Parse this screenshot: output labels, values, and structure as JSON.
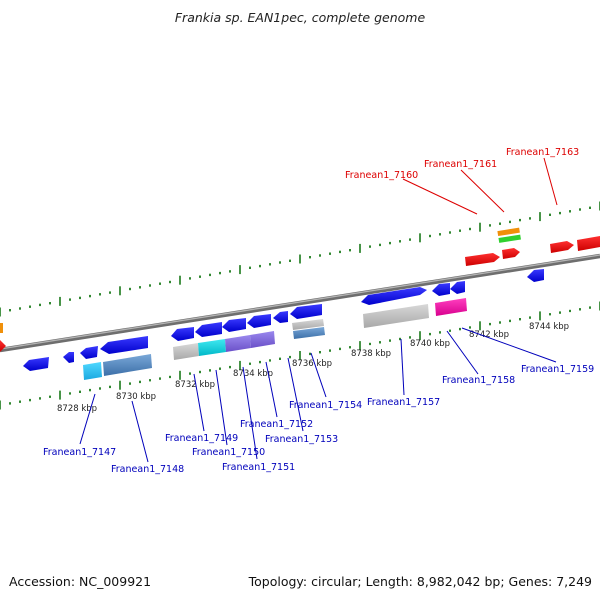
{
  "title": "Frankia sp. EAN1pec, complete genome",
  "footer": {
    "accession": "Accession: NC_009921",
    "summary": "Topology: circular; Length: 8,982,042 bp; Genes: 7,249"
  },
  "colors": {
    "label_red": "#dd0000",
    "label_blue": "#0000bb",
    "tick_green": "#1a7a1a",
    "backbone": "#8a8a8a"
  },
  "kbp_labels": [
    "8728 kbp",
    "8730 kbp",
    "8732 kbp",
    "8734 kbp",
    "8736 kbp",
    "8738 kbp",
    "8740 kbp",
    "8742 kbp",
    "8744 kbp"
  ],
  "gene_labels": [
    {
      "text": "Franean1_7160",
      "color": "red"
    },
    {
      "text": "Franean1_7161",
      "color": "red"
    },
    {
      "text": "Franean1_7163",
      "color": "red"
    },
    {
      "text": "Franean1_7147",
      "color": "blue"
    },
    {
      "text": "Franean1_7148",
      "color": "blue"
    },
    {
      "text": "Franean1_7149",
      "color": "blue"
    },
    {
      "text": "Franean1_7150",
      "color": "blue"
    },
    {
      "text": "Franean1_7151",
      "color": "blue"
    },
    {
      "text": "Franean1_7152",
      "color": "blue"
    },
    {
      "text": "Franean1_7153",
      "color": "blue"
    },
    {
      "text": "Franean1_7154",
      "color": "blue"
    },
    {
      "text": "Franean1_7157",
      "color": "blue"
    },
    {
      "text": "Franean1_7158",
      "color": "blue"
    },
    {
      "text": "Franean1_7159",
      "color": "blue"
    }
  ]
}
